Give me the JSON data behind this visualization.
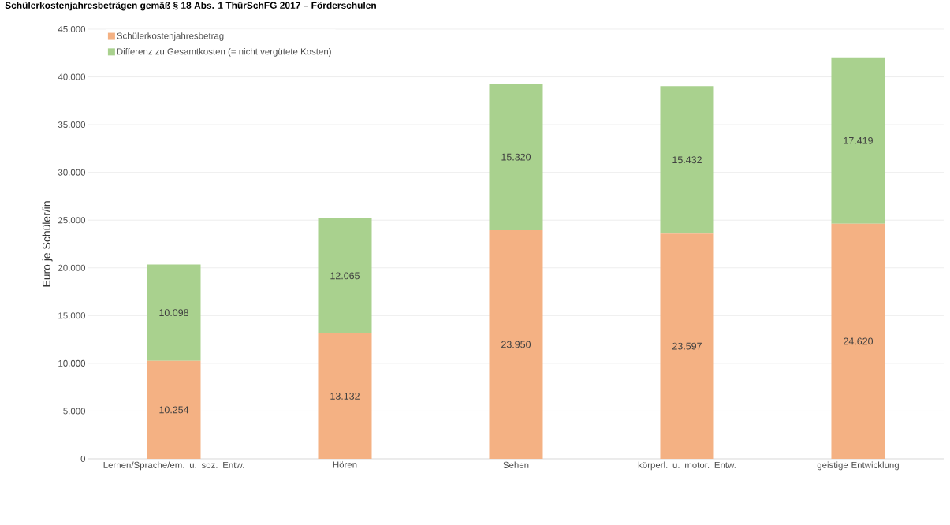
{
  "chart_data": {
    "type": "bar",
    "stacked": true,
    "title": "Schülerkostenjahresbeträgen gemäß § 18 Abs. 1 ThürSchFG 2017 – Förderschulen",
    "ylabel": "Euro je Schüler/in",
    "categories": [
      "Lernen/Sprache/em. u. soz. Entw.",
      "Hören",
      "Sehen",
      "körperl. u. motor. Entw.",
      "geistige Entwicklung"
    ],
    "series": [
      {
        "name": "Schülerkostenjahresbetrag",
        "color": "#f4b183",
        "values": [
          10254,
          13132,
          23950,
          23597,
          24620
        ],
        "value_labels": [
          "10.254",
          "13.132",
          "23.950",
          "23.597",
          "24.620"
        ]
      },
      {
        "name": "Differenz zu Gesamtkosten (= nicht vergütete Kosten)",
        "color": "#a9d18e",
        "values": [
          10098,
          12065,
          15320,
          15432,
          17419
        ],
        "value_labels": [
          "10.098",
          "12.065",
          "15.320",
          "15.432",
          "17.419"
        ]
      }
    ],
    "ylim": [
      0,
      45000
    ],
    "yticks": [
      {
        "value": 0,
        "label": "0"
      },
      {
        "value": 5000,
        "label": "5.000"
      },
      {
        "value": 10000,
        "label": "10.000"
      },
      {
        "value": 15000,
        "label": "15.000"
      },
      {
        "value": 20000,
        "label": "20.000"
      },
      {
        "value": 25000,
        "label": "25.000"
      },
      {
        "value": 30000,
        "label": "30.000"
      },
      {
        "value": 35000,
        "label": "35.000"
      },
      {
        "value": 40000,
        "label": "40.000"
      },
      {
        "value": 45000,
        "label": "45.000"
      }
    ],
    "grid": "y",
    "legend": "top left"
  }
}
